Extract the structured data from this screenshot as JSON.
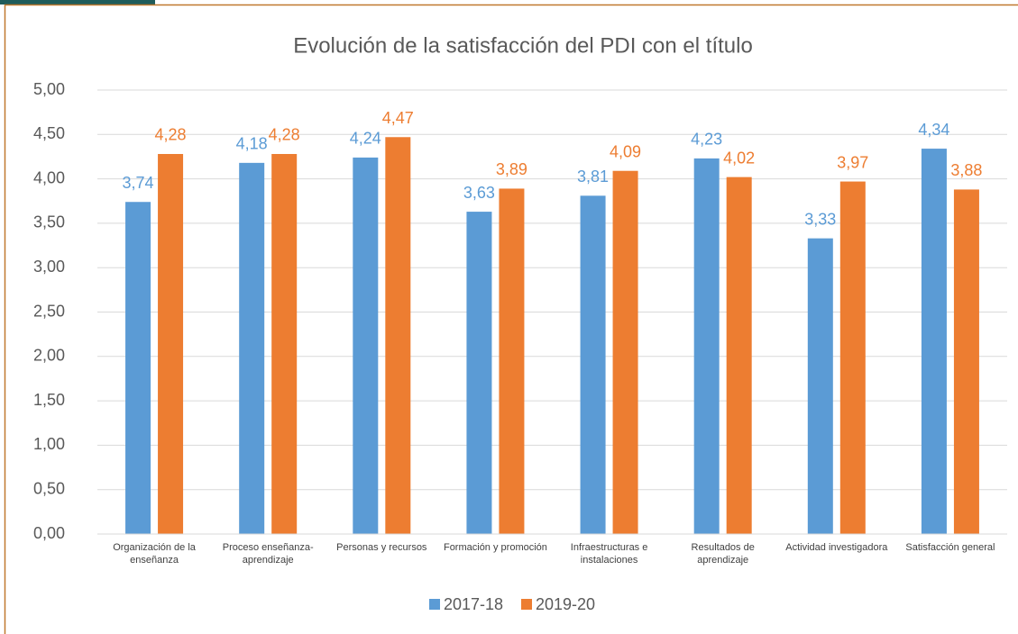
{
  "chart_data": {
    "type": "bar",
    "title": "Evolución de la satisfacción del PDI con el título",
    "categories": [
      "Organización de la enseñanza",
      "Proceso enseñanza-aprendizaje",
      "Personas y recursos",
      "Formación y promoción",
      "Infraestructuras e instalaciones",
      "Resultados de aprendizaje",
      "Actividad investigadora",
      "Satisfacción general"
    ],
    "series": [
      {
        "name": "2017-18",
        "color": "#5b9bd5",
        "values": [
          3.74,
          4.18,
          4.24,
          3.63,
          3.81,
          4.23,
          3.33,
          4.34
        ],
        "value_labels": [
          "3,74",
          "4,18",
          "4,24",
          "3,63",
          "3,81",
          "4,23",
          "3,33",
          "4,34"
        ]
      },
      {
        "name": "2019-20",
        "color": "#ed7d31",
        "values": [
          4.28,
          4.28,
          4.47,
          3.89,
          4.09,
          4.02,
          3.97,
          3.88
        ],
        "value_labels": [
          "4,28",
          "4,28",
          "4,47",
          "3,89",
          "4,09",
          "4,02",
          "3,97",
          "3,88"
        ]
      }
    ],
    "ylim": [
      0,
      5
    ],
    "yticks": [
      {
        "value": 0,
        "label": "0,00"
      },
      {
        "value": 0.5,
        "label": "0,50"
      },
      {
        "value": 1,
        "label": "1,00"
      },
      {
        "value": 1.5,
        "label": "1,50"
      },
      {
        "value": 2,
        "label": "2,00"
      },
      {
        "value": 2.5,
        "label": "2,50"
      },
      {
        "value": 3,
        "label": "3,00"
      },
      {
        "value": 3.5,
        "label": "3,50"
      },
      {
        "value": 4,
        "label": "4,00"
      },
      {
        "value": 4.5,
        "label": "4,50"
      },
      {
        "value": 5,
        "label": "5,00"
      }
    ],
    "grid": true,
    "legend": "bottom"
  }
}
